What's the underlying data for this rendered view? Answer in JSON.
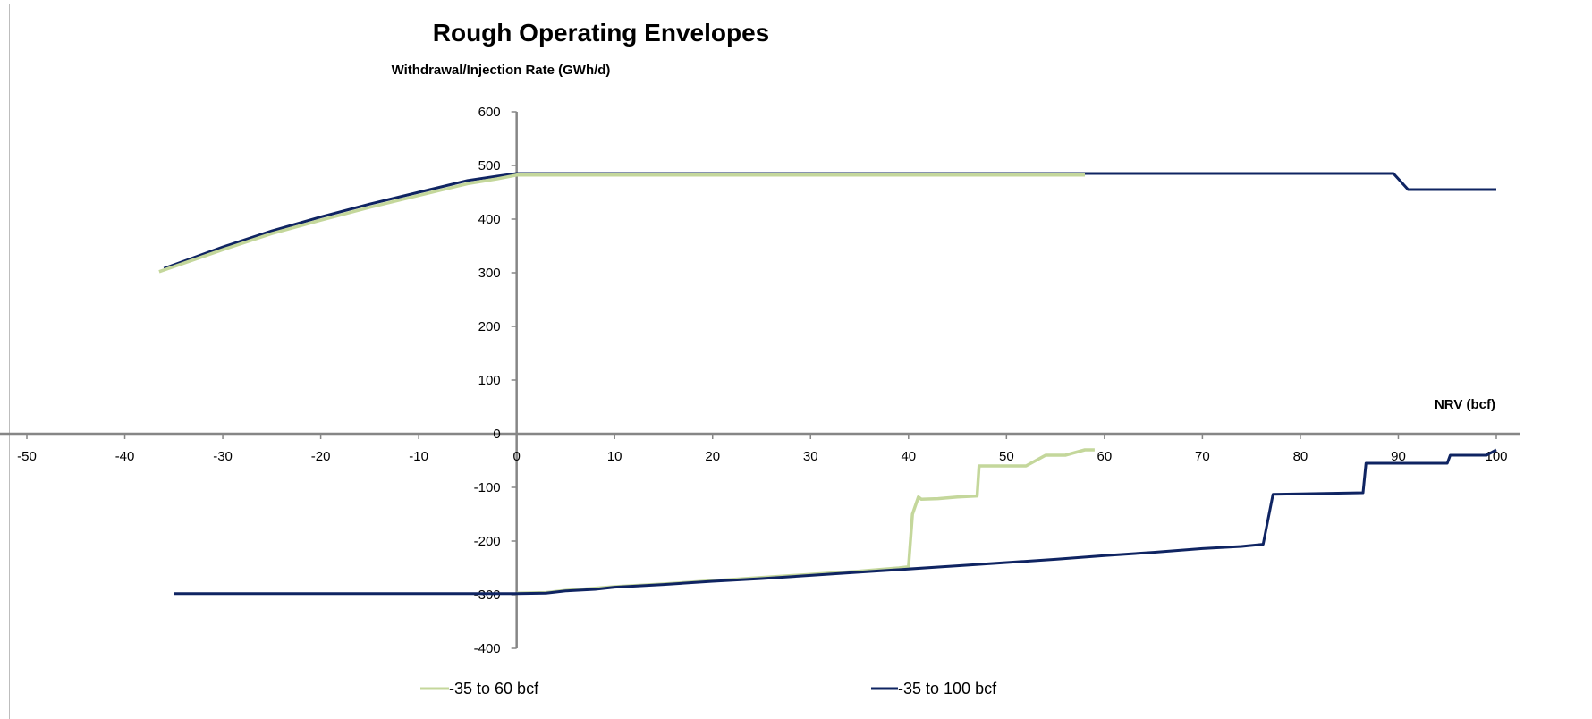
{
  "chart_data": {
    "type": "line",
    "title": "Rough Operating Envelopes",
    "ylabel": "Withdrawal/Injection Rate (GWh/d)",
    "xlabel": "NRV (bcf)",
    "xlim": [
      -50,
      100
    ],
    "ylim": [
      -400,
      600
    ],
    "xticks": [
      -50,
      -40,
      -30,
      -20,
      -10,
      0,
      10,
      20,
      30,
      40,
      50,
      60,
      70,
      80,
      90,
      100
    ],
    "yticks": [
      600,
      500,
      400,
      300,
      200,
      100,
      0,
      -100,
      -200,
      -300,
      -400
    ],
    "grid": false,
    "legend": "bottom",
    "colors": {
      "series1": "#c4d79b",
      "series2": "#0f2462",
      "axis": "#868686"
    },
    "series": [
      {
        "name": "-35 to 60 bcf",
        "color": "#c4d79b",
        "segments": [
          {
            "x": [
              -36.5,
              -30,
              -25,
              -20,
              -15,
              -10,
              -5,
              -2,
              0,
              10,
              20,
              30,
              40,
              50,
              58
            ],
            "y": [
              302,
              343,
              373,
              398,
              422,
              444,
              466,
              475,
              482,
              482,
              482,
              482,
              482,
              482,
              482
            ]
          },
          {
            "x": [
              0,
              3,
              5,
              8,
              10,
              15,
              20,
              25,
              30,
              35,
              39,
              40,
              40.4,
              41.0,
              41.3,
              43,
              45,
              47,
              47.2,
              50,
              52,
              54,
              56,
              58,
              59
            ],
            "y": [
              -297,
              -296,
              -292,
              -288,
              -285,
              -280,
              -274,
              -268,
              -262,
              -256,
              -250,
              -248,
              -150,
              -118,
              -122,
              -121,
              -118,
              -116,
              -60,
              -60,
              -60,
              -40,
              -40,
              -30,
              -30
            ]
          }
        ]
      },
      {
        "name": "-35 to 100 bcf",
        "color": "#0f2462",
        "segments": [
          {
            "x": [
              -36,
              -30,
              -25,
              -20,
              -15,
              -10,
              -5,
              -2,
              0,
              10,
              20,
              30,
              40,
              50,
              58,
              70,
              80,
              89.5,
              91,
              100
            ],
            "y": [
              308,
              348,
              378,
              404,
              428,
              450,
              472,
              480,
              485,
              485,
              485,
              485,
              485,
              485,
              485,
              485,
              485,
              485,
              455,
              455
            ]
          },
          {
            "x": [
              -35,
              -20,
              -10,
              0,
              3,
              5,
              8,
              10,
              15,
              20,
              25,
              30,
              35,
              40,
              45,
              50,
              55,
              60,
              65,
              70,
              74,
              76.2,
              77.2,
              80,
              86.4,
              86.7,
              92,
              95,
              95.3,
              99,
              100
            ],
            "y": [
              -298,
              -298,
              -298,
              -298,
              -297,
              -293,
              -290,
              -286,
              -281,
              -275,
              -270,
              -264,
              -258,
              -252,
              -246,
              -240,
              -234,
              -227,
              -221,
              -214,
              -210,
              -206,
              -113,
              -112,
              -110,
              -55,
              -55,
              -55,
              -40,
              -40,
              -30
            ]
          }
        ]
      }
    ]
  }
}
